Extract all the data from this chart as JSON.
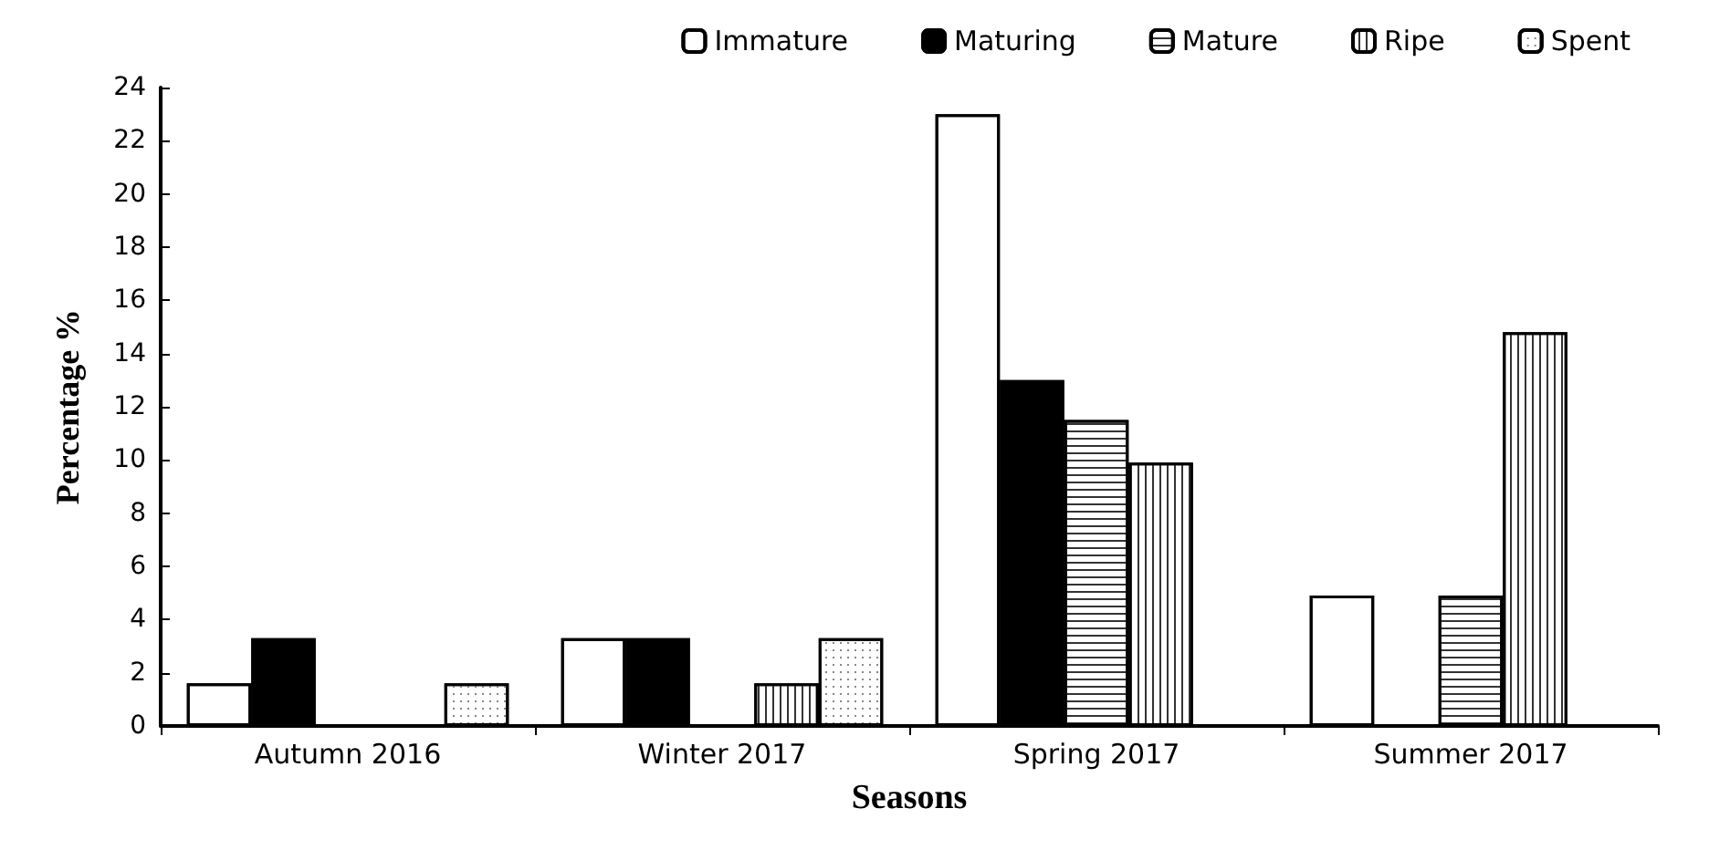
{
  "chart_data": {
    "type": "bar",
    "xlabel": "Seasons",
    "ylabel": "Percentage %",
    "categories": [
      "Autumn 2016",
      "Winter 2017",
      "Spring 2017",
      "Summer 2017"
    ],
    "series": [
      {
        "name": "Immature",
        "color": "#ffffff",
        "values": [
          1.6,
          3.3,
          23,
          4.9
        ]
      },
      {
        "name": "Maturing",
        "color": "#000000",
        "values": [
          3.3,
          3.3,
          13,
          0
        ]
      },
      {
        "name": "Mature",
        "color": "#ffffff",
        "values": [
          0,
          0,
          11.5,
          4.9
        ]
      },
      {
        "name": "Ripe",
        "color": "#ffffff",
        "values": [
          0,
          1.6,
          9.9,
          14.8
        ]
      },
      {
        "name": "Spent",
        "color": "#ffffff",
        "values": [
          1.6,
          3.3,
          0,
          0
        ]
      }
    ],
    "ylim": [
      0,
      24
    ],
    "yticks": [
      0,
      2,
      4,
      6,
      8,
      10,
      12,
      14,
      16,
      18,
      20,
      22,
      24
    ],
    "grid": false,
    "legend": "top right"
  }
}
